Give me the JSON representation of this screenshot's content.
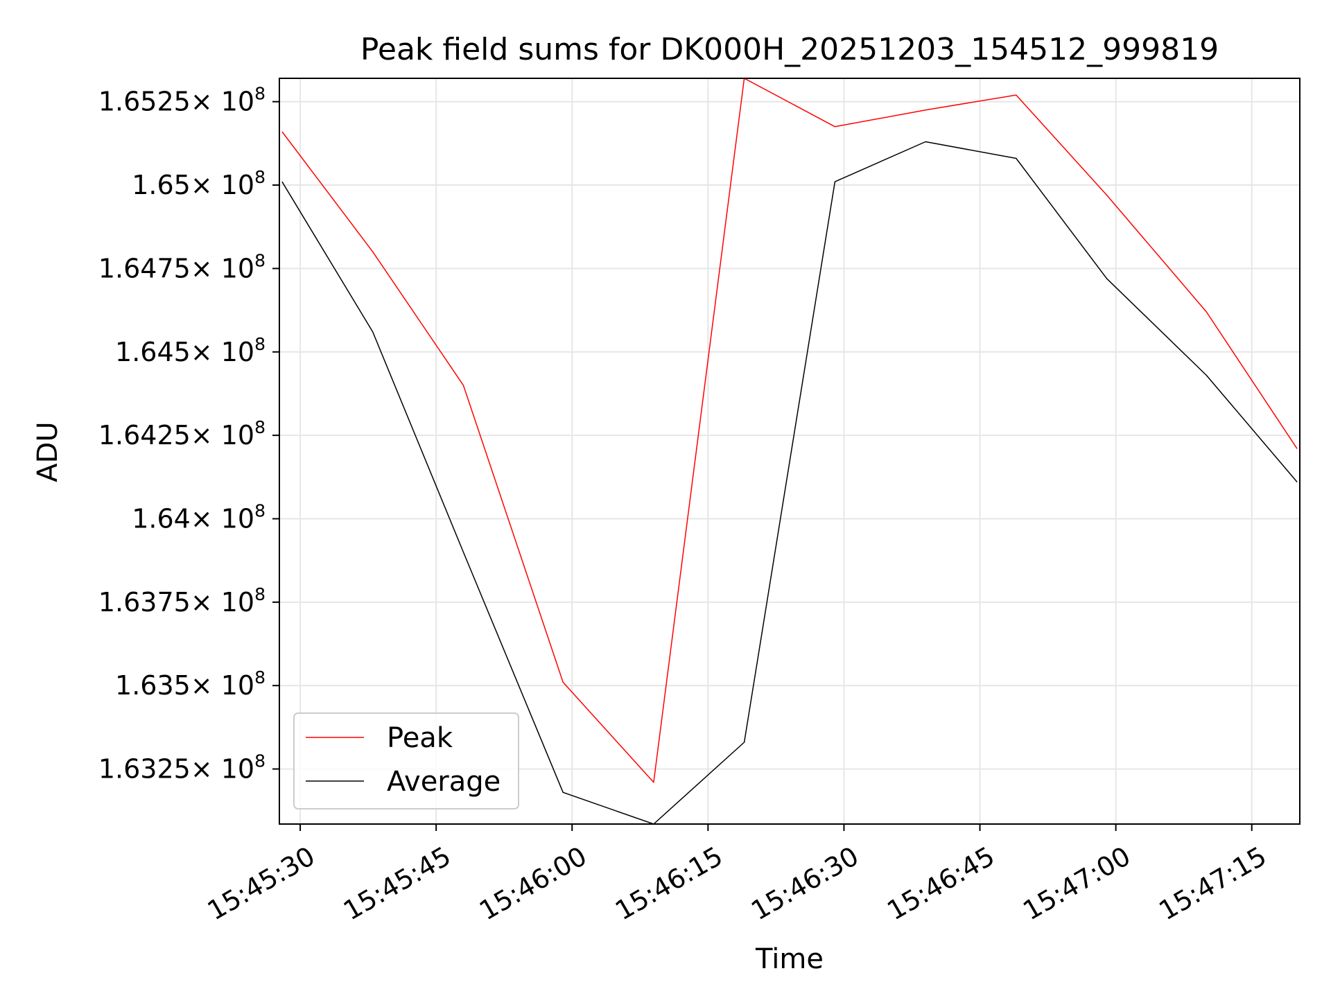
{
  "chart_data": {
    "type": "line",
    "title": "Peak field sums for DK000H_20251203_154512_999819",
    "xlabel": "Time",
    "ylabel": "ADU",
    "x_tick_labels": [
      "15:45:30",
      "15:45:45",
      "15:46:00",
      "15:46:15",
      "15:46:30",
      "15:46:45",
      "15:47:00",
      "15:47:15"
    ],
    "y_ticks": [
      {
        "mantissa": "1.6325",
        "value": 163250000
      },
      {
        "mantissa": "1.635",
        "value": 163500000
      },
      {
        "mantissa": "1.6375",
        "value": 163750000
      },
      {
        "mantissa": "1.64",
        "value": 164000000
      },
      {
        "mantissa": "1.6425",
        "value": 164250000
      },
      {
        "mantissa": "1.645",
        "value": 164500000
      },
      {
        "mantissa": "1.6475",
        "value": 164750000
      },
      {
        "mantissa": "1.65",
        "value": 165000000
      },
      {
        "mantissa": "1.6525",
        "value": 165250000
      }
    ],
    "tick_multiplier": "× 10",
    "tick_exponent": "8",
    "xlim": [
      "15:45:27.7",
      "15:47:20.3"
    ],
    "ylim": [
      163085000,
      165320000
    ],
    "x": [
      "15:45:28",
      "15:45:38",
      "15:45:48",
      "15:45:59",
      "15:46:09",
      "15:46:19",
      "15:46:29",
      "15:46:39",
      "15:46:49",
      "15:46:59",
      "15:47:10",
      "15:47:20"
    ],
    "series": [
      {
        "name": "Peak",
        "color": "#ff0000",
        "values": [
          165160000,
          164800000,
          164400000,
          163510000,
          163210000,
          165320000,
          165175000,
          165225000,
          165270000,
          164970000,
          164620000,
          164210000
        ]
      },
      {
        "name": "Average",
        "color": "#000000",
        "values": [
          165010000,
          164560000,
          163900000,
          163180000,
          163085000,
          163330000,
          165010000,
          165130000,
          165080000,
          164720000,
          164430000,
          164110000
        ]
      }
    ],
    "grid": true,
    "legend_position": "lower-left"
  }
}
